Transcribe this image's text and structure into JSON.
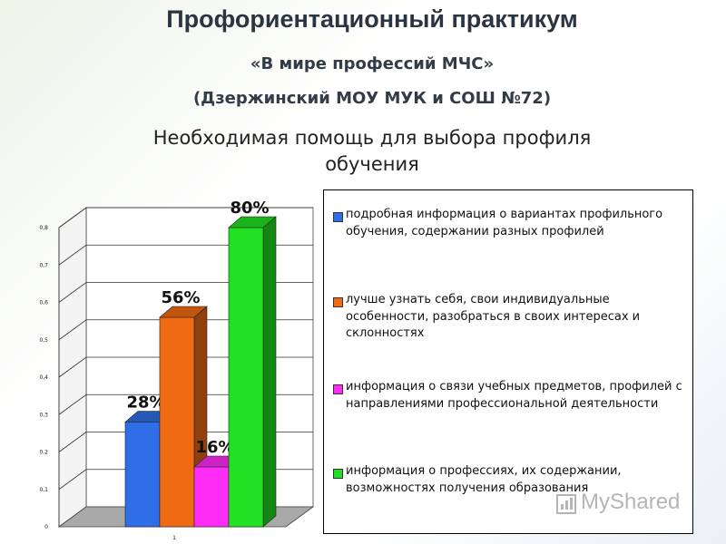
{
  "header": {
    "title": "Профориентационный практикум",
    "subtitle_line1": "«В мире профессий МЧС»",
    "subtitle_line2": "(Дзержинский МОУ МУК  и СОШ №72)"
  },
  "chart_data": {
    "type": "bar",
    "title_line1": "Необходимая помощь для выбора профиля",
    "title_line2": "обучения",
    "categories": [
      ""
    ],
    "series": [
      {
        "name": "подробная информация о вариантах профильного обучения, содержании разных профилей",
        "values": [
          0.28
        ],
        "label": "28%",
        "color": "#2f6ee6"
      },
      {
        "name": "лучше узнать себя, свои индивидуальные особенности, разобраться в своих интересах и склонностях",
        "values": [
          0.56
        ],
        "label": "56%",
        "color": "#f06a14"
      },
      {
        "name": "информация о связи учебных предметов, профилей с направлениями профессиональной деятельности",
        "values": [
          0.16
        ],
        "label": "16%",
        "color": "#ff2cf5"
      },
      {
        "name": "информация о профессиях, их содержании, возможностях получения образования",
        "values": [
          0.8
        ],
        "label": "80%",
        "color": "#22e022"
      }
    ],
    "ylim": [
      0,
      0.8
    ],
    "yticks": [
      "0",
      "0,1",
      "0,2",
      "0,3",
      "0,4",
      "0,5",
      "0,6",
      "0,7",
      "0,8"
    ],
    "xtick": "1",
    "grid": true,
    "legend_position": "right"
  },
  "legend": {
    "items": [
      {
        "text": "подробная информация о вариантах профильного обучения, содержании разных профилей"
      },
      {
        "text": "лучше узнать себя, свои индивидуальные особенности, разобраться в своих интересах и склонностях"
      },
      {
        "text": "информация о связи учебных предметов, профилей с направлениями профессиональной деятельности"
      },
      {
        "text": "информация о профессиях, их содержании, возможностях получения образования"
      }
    ]
  },
  "watermark": {
    "text": "MyShared"
  }
}
